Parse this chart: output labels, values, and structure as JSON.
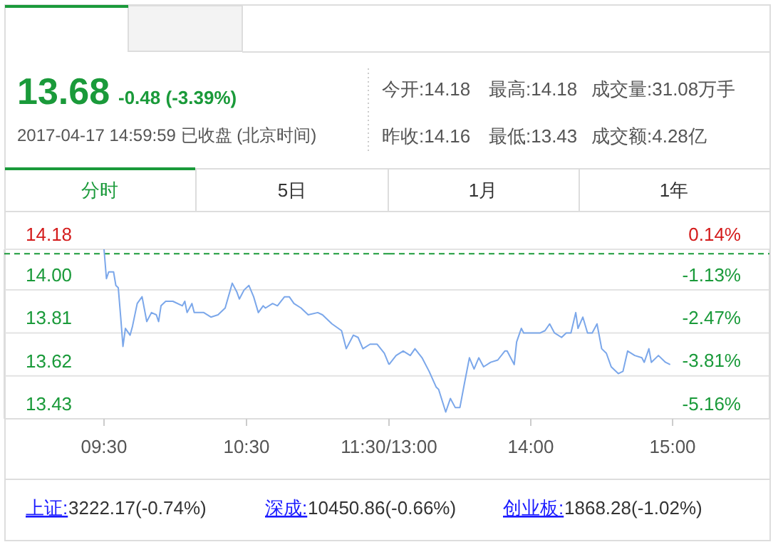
{
  "chart_data": [
    {
      "type": "line",
      "x": [
        9.5,
        9.517,
        9.533,
        9.567,
        9.583,
        9.6,
        9.617,
        9.633,
        9.65,
        9.683,
        9.7,
        9.733,
        9.767,
        9.8,
        9.833,
        9.867,
        9.883,
        9.9,
        9.933,
        9.983,
        10.05,
        10.067,
        10.083,
        10.117,
        10.133,
        10.2,
        10.25,
        10.3,
        10.35,
        10.4,
        10.433,
        10.45,
        10.483,
        10.517,
        10.55,
        10.583,
        10.617,
        10.633,
        10.683,
        10.717,
        10.767,
        10.8,
        10.833,
        10.883,
        10.933,
        11,
        11.033,
        11.1,
        11.167,
        11.2,
        11.25,
        11.283,
        11.317,
        11.367,
        11.417,
        11.467,
        11.5
      ],
      "series": [
        {
          "color": "#7ba7ea",
          "values": [
            14.18,
            14.05,
            14.08,
            14.08,
            14.02,
            14.01,
            13.88,
            13.75,
            13.83,
            13.8,
            13.84,
            13.94,
            13.97,
            13.86,
            13.9,
            13.89,
            13.86,
            13.93,
            13.95,
            13.95,
            13.93,
            13.95,
            13.9,
            13.94,
            13.9,
            13.9,
            13.88,
            13.89,
            13.92,
            14.03,
            13.99,
            13.96,
            14.0,
            14.02,
            13.97,
            13.9,
            13.93,
            13.92,
            13.94,
            13.93,
            13.97,
            13.97,
            13.94,
            13.92,
            13.89,
            13.9,
            13.89,
            13.85,
            13.82,
            13.74,
            13.8,
            13.79,
            13.74,
            13.76,
            13.76,
            13.72,
            13.67
          ]
        }
      ],
      "xlim": [
        8.8,
        11.5
      ],
      "xticks": [
        {
          "value": 9.5,
          "label": "09:30"
        },
        {
          "value": 10.5,
          "label": "10:30"
        },
        {
          "value": 11.5,
          "label": "11:30/13:00"
        }
      ],
      "ylim": [
        13.43,
        14.18
      ],
      "yticks": [
        14.18,
        {
          "value": 14,
          "label": "14.00"
        },
        13.81,
        13.62,
        13.43
      ],
      "grid": "y",
      "ref_lines": [
        {
          "axis": "y",
          "value": 14.16,
          "label": null,
          "color": "#1a9a3a",
          "line_style": "dashed"
        }
      ],
      "annotations": [
        "13.68",
        "-0.48 (-3.39%)",
        "2017-04-17 14:59:59 已收盘 (北京时间)",
        "今开:14.18",
        "最高:14.18",
        "成交量:31.08万手",
        "昨收:14.16",
        "最低:13.43",
        "成交额:4.28亿",
        "分时",
        "5日",
        "1月",
        "1年",
        "上证:",
        "3222.17(-0.74%)",
        "深成:",
        "10450.86(-0.66%)",
        "创业板:",
        "1868.28(-1.02%)"
      ]
    },
    {
      "type": "line",
      "x": [
        13,
        13.05,
        13.1,
        13.15,
        13.183,
        13.233,
        13.283,
        13.333,
        13.35,
        13.4,
        13.433,
        13.467,
        13.5,
        13.533,
        13.567,
        13.6,
        13.633,
        13.667,
        13.717,
        13.767,
        13.817,
        13.833,
        13.883,
        13.9,
        13.933,
        13.95,
        14,
        14.067,
        14.1,
        14.133,
        14.167,
        14.217,
        14.25,
        14.283,
        14.317,
        14.333,
        14.367,
        14.4,
        14.433,
        14.467,
        14.5,
        14.533,
        14.567,
        14.617,
        14.65,
        14.683,
        14.733,
        14.783,
        14.8,
        14.833,
        14.85,
        14.9,
        14.95,
        14.983
      ],
      "series": [
        {
          "color": "#7ba7ea",
          "values": [
            13.67,
            13.71,
            13.73,
            13.71,
            13.74,
            13.7,
            13.64,
            13.57,
            13.56,
            13.46,
            13.52,
            13.48,
            13.48,
            13.59,
            13.7,
            13.65,
            13.7,
            13.66,
            13.68,
            13.69,
            13.73,
            13.73,
            13.67,
            13.77,
            13.83,
            13.81,
            13.81,
            13.81,
            13.82,
            13.85,
            13.81,
            13.79,
            13.81,
            13.81,
            13.9,
            13.83,
            13.88,
            13.81,
            13.81,
            13.85,
            13.74,
            13.72,
            13.66,
            13.63,
            13.64,
            13.73,
            13.71,
            13.7,
            13.68,
            13.74,
            13.68,
            13.71,
            13.68,
            13.67
          ]
        }
      ],
      "xlim": [
        13,
        15.683
      ],
      "xticks": [
        {
          "value": 13,
          "label": null
        },
        {
          "value": 14,
          "label": "14:00"
        },
        {
          "value": 15,
          "label": "15:00"
        }
      ],
      "ylim": [
        13.43,
        14.18
      ],
      "yticks": [
        14.18,
        14,
        13.81,
        13.62,
        13.43
      ],
      "tick_labels": "x",
      "y2lim": [
        -5.16,
        0.14
      ],
      "y2ticks": [
        {
          "value": 0.14,
          "label": "0.14%"
        },
        {
          "value": -1.13,
          "label": "-1.13%"
        },
        {
          "value": -2.47,
          "label": "-2.47%"
        },
        {
          "value": -3.81,
          "label": "-3.81%"
        },
        {
          "value": -5.16,
          "label": "-5.16%"
        }
      ],
      "grid": "y",
      "ref_lines": [
        {
          "axis": "y",
          "value": 14.16,
          "label": null,
          "color": "#1a9a3a",
          "line_style": "dashed"
        }
      ]
    }
  ]
}
